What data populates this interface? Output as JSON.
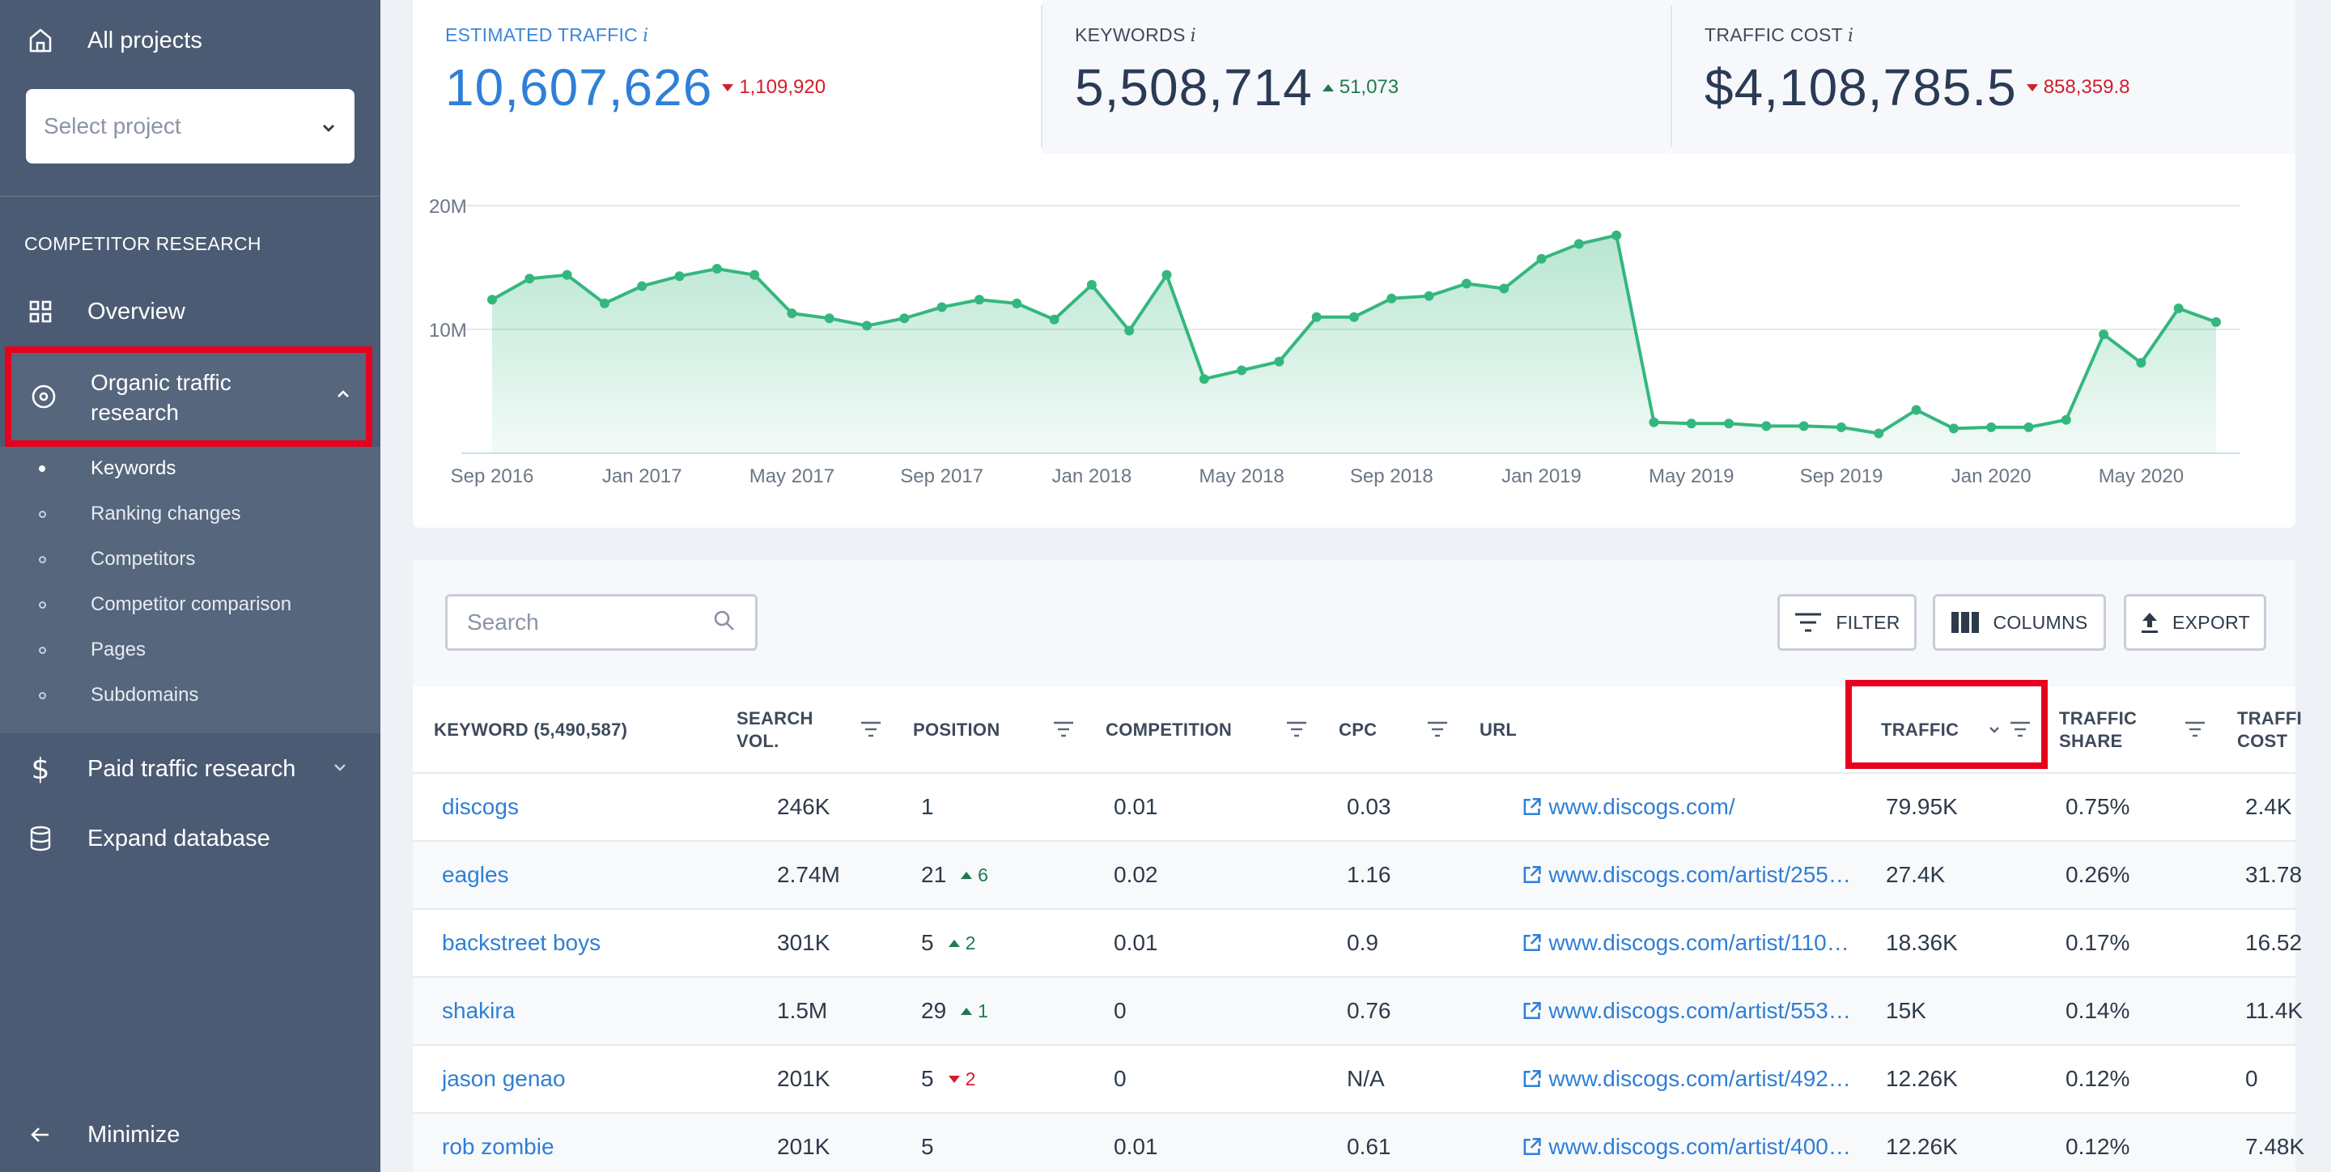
{
  "sidebar": {
    "all_projects": "All projects",
    "select_placeholder": "Select project",
    "section_title": "COMPETITOR RESEARCH",
    "overview": "Overview",
    "organic_line1": "Organic traffic",
    "organic_line2": "research",
    "sub_items": [
      {
        "label": "Keywords"
      },
      {
        "label": "Ranking changes"
      },
      {
        "label": "Competitors"
      },
      {
        "label": "Competitor comparison"
      },
      {
        "label": "Pages"
      },
      {
        "label": "Subdomains"
      }
    ],
    "paid": "Paid traffic research",
    "expand": "Expand database",
    "minimize": "Minimize"
  },
  "metrics": {
    "traffic": {
      "title": "ESTIMATED TRAFFIC",
      "info": "i",
      "value": "10,607,626",
      "delta": "1,109,920"
    },
    "keywords": {
      "title": "KEYWORDS",
      "info": "i",
      "value": "5,508,714",
      "delta": "51,073"
    },
    "cost": {
      "title": "TRAFFIC COST",
      "info": "i",
      "value": "$4,108,785.5",
      "delta": "858,359.8"
    }
  },
  "chart_data": {
    "type": "area",
    "y_ticks": [
      "20M",
      "10M"
    ],
    "ylim": [
      0,
      20000000
    ],
    "x_labels": [
      "Sep 2016",
      "Jan 2017",
      "May 2017",
      "Sep 2017",
      "Jan 2018",
      "May 2018",
      "Sep 2018",
      "Jan 2019",
      "May 2019",
      "Sep 2019",
      "Jan 2020",
      "May 2020"
    ],
    "x_start": "2016-09",
    "values": [
      12.4,
      14.1,
      14.4,
      12.1,
      13.5,
      14.3,
      14.9,
      14.4,
      11.3,
      10.9,
      10.3,
      10.9,
      11.8,
      12.4,
      12.1,
      10.8,
      13.6,
      9.9,
      14.4,
      6.0,
      6.7,
      7.4,
      11.0,
      11.0,
      12.5,
      12.7,
      13.7,
      13.3,
      15.7,
      16.9,
      17.6,
      2.5,
      2.4,
      2.4,
      2.2,
      2.2,
      2.1,
      1.6,
      3.5,
      2.0,
      2.1,
      2.1,
      2.7,
      9.6,
      7.3,
      11.7,
      10.6
    ],
    "unit": "M",
    "color": "#34b77e"
  },
  "toolbar": {
    "search_placeholder": "Search",
    "filter": "FILTER",
    "columns": "COLUMNS",
    "export": "EXPORT"
  },
  "table": {
    "headers": {
      "keyword": "KEYWORD (5,490,587)",
      "search_vol_1": "SEARCH",
      "search_vol_2": "VOL.",
      "position": "POSITION",
      "competition": "COMPETITION",
      "cpc": "CPC",
      "url": "URL",
      "traffic": "TRAFFIC",
      "share_1": "TRAFFIC",
      "share_2": "SHARE",
      "cost_1": "TRAFFI",
      "cost_2": "COST"
    },
    "rows": [
      {
        "keyword": "discogs",
        "vol": "246K",
        "pos": "1",
        "change": "",
        "dir": "",
        "comp": "0.01",
        "cpc": "0.03",
        "url": "www.discogs.com/",
        "traffic": "79.95K",
        "share": "0.75%",
        "cost": "2.4K"
      },
      {
        "keyword": "eagles",
        "vol": "2.74M",
        "pos": "21",
        "change": "6",
        "dir": "up",
        "comp": "0.02",
        "cpc": "1.16",
        "url": "www.discogs.com/artist/255…",
        "traffic": "27.4K",
        "share": "0.26%",
        "cost": "31.78"
      },
      {
        "keyword": "backstreet boys",
        "vol": "301K",
        "pos": "5",
        "change": "2",
        "dir": "up",
        "comp": "0.01",
        "cpc": "0.9",
        "url": "www.discogs.com/artist/110…",
        "traffic": "18.36K",
        "share": "0.17%",
        "cost": "16.52"
      },
      {
        "keyword": "shakira",
        "vol": "1.5M",
        "pos": "29",
        "change": "1",
        "dir": "up",
        "comp": "0",
        "cpc": "0.76",
        "url": "www.discogs.com/artist/553…",
        "traffic": "15K",
        "share": "0.14%",
        "cost": "11.4K"
      },
      {
        "keyword": "jason genao",
        "vol": "201K",
        "pos": "5",
        "change": "2",
        "dir": "down",
        "comp": "0",
        "cpc": "N/A",
        "url": "www.discogs.com/artist/492…",
        "traffic": "12.26K",
        "share": "0.12%",
        "cost": "0"
      },
      {
        "keyword": "rob zombie",
        "vol": "201K",
        "pos": "5",
        "change": "",
        "dir": "",
        "comp": "0.01",
        "cpc": "0.61",
        "url": "www.discogs.com/artist/400…",
        "traffic": "12.26K",
        "share": "0.12%",
        "cost": "7.48K"
      }
    ]
  }
}
